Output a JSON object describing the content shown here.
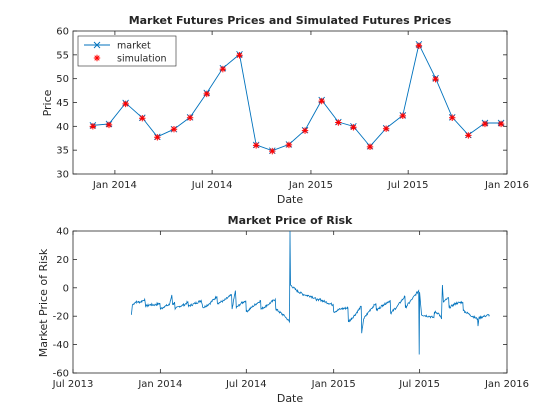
{
  "figure": {
    "colors": {
      "market_line": "#0072BD",
      "simulation_marker": "#FF0000",
      "axes": "#262626",
      "background": "#FFFFFF"
    }
  },
  "chart_data": [
    {
      "type": "line",
      "title": "Market Futures Prices and Simulated Futures Prices",
      "xlabel": "Date",
      "ylabel": "Price",
      "xlim": [
        "2013-10-15",
        "2016-01-01"
      ],
      "ylim": [
        30,
        60
      ],
      "x_ticks": [
        "2014-01-01",
        "2014-07-01",
        "2015-01-01",
        "2015-07-01",
        "2016-01-01"
      ],
      "x_tick_labels": [
        "Jan 2014",
        "Jul 2014",
        "Jan 2015",
        "Jul 2015",
        "Jan 2016"
      ],
      "y_ticks": [
        30,
        35,
        40,
        45,
        50,
        55,
        60
      ],
      "grid": false,
      "legend": {
        "position": "top-left"
      },
      "dates": [
        "2013-11-21",
        "2013-12-21",
        "2014-01-21",
        "2014-02-21",
        "2014-03-21",
        "2014-04-21",
        "2014-05-21",
        "2014-06-21",
        "2014-07-21",
        "2014-08-21",
        "2014-09-21",
        "2014-10-21",
        "2014-11-21",
        "2014-12-21",
        "2015-01-21",
        "2015-02-21",
        "2015-03-21",
        "2015-04-21",
        "2015-05-21",
        "2015-06-21",
        "2015-07-21",
        "2015-08-21",
        "2015-09-21",
        "2015-10-21",
        "2015-11-21",
        "2015-12-21"
      ],
      "series": [
        {
          "name": "market",
          "style": "line-x",
          "values": [
            40.2,
            40.5,
            44.9,
            41.8,
            37.8,
            39.4,
            41.9,
            47.0,
            52.2,
            55.1,
            36.1,
            34.9,
            36.2,
            39.2,
            45.5,
            40.9,
            40.0,
            35.8,
            39.6,
            42.3,
            57.2,
            50.1,
            41.9,
            38.2,
            40.7,
            40.7
          ]
        },
        {
          "name": "simulation",
          "style": "marker-star",
          "values": [
            40.0,
            40.3,
            44.7,
            41.7,
            37.7,
            39.4,
            41.8,
            46.8,
            52.0,
            54.9,
            36.0,
            34.8,
            36.1,
            39.1,
            45.3,
            40.8,
            39.8,
            35.7,
            39.5,
            42.2,
            56.9,
            49.9,
            41.8,
            38.1,
            40.5,
            40.5
          ]
        }
      ]
    },
    {
      "type": "line",
      "title": "Market Price of Risk",
      "xlabel": "Date",
      "ylabel": "Market Price of Risk",
      "xlim": [
        "2013-07-01",
        "2016-01-01"
      ],
      "ylim": [
        -60,
        40
      ],
      "x_ticks": [
        "2013-07-01",
        "2014-01-01",
        "2014-07-01",
        "2015-01-01",
        "2015-07-01",
        "2016-01-01"
      ],
      "x_tick_labels": [
        "Jul 2013",
        "Jan 2014",
        "Jul 2014",
        "Jan 2015",
        "Jul 2015",
        "Jan 2016"
      ],
      "y_ticks": [
        -60,
        -40,
        -20,
        0,
        20,
        40
      ],
      "grid": false,
      "series": [
        {
          "points": [
            [
              "2013-11-01",
              -19
            ],
            [
              "2013-11-03",
              -12
            ],
            [
              "2013-11-10",
              -10
            ],
            [
              "2013-11-20",
              -10
            ],
            [
              "2013-11-25",
              -9
            ],
            [
              "2013-11-29",
              -8
            ],
            [
              "2013-12-01",
              -13
            ],
            [
              "2013-12-10",
              -12
            ],
            [
              "2013-12-20",
              -12
            ],
            [
              "2013-12-31",
              -11
            ],
            [
              "2014-01-01",
              -15
            ],
            [
              "2014-01-10",
              -13
            ],
            [
              "2014-01-20",
              -12
            ],
            [
              "2014-01-25",
              -5
            ],
            [
              "2014-01-27",
              -12
            ],
            [
              "2014-01-31",
              -10
            ],
            [
              "2014-02-01",
              -15
            ],
            [
              "2014-02-10",
              -13
            ],
            [
              "2014-02-20",
              -12
            ],
            [
              "2014-02-28",
              -10
            ],
            [
              "2014-03-01",
              -13
            ],
            [
              "2014-03-15",
              -11
            ],
            [
              "2014-03-28",
              -9
            ],
            [
              "2014-04-01",
              -14
            ],
            [
              "2014-04-15",
              -11
            ],
            [
              "2014-04-30",
              -6
            ],
            [
              "2014-05-01",
              -11
            ],
            [
              "2014-05-15",
              -9
            ],
            [
              "2014-05-31",
              -5
            ],
            [
              "2014-06-01",
              -15
            ],
            [
              "2014-06-08",
              -2
            ],
            [
              "2014-06-10",
              -14
            ],
            [
              "2014-06-20",
              -11
            ],
            [
              "2014-06-30",
              -9
            ],
            [
              "2014-07-01",
              -17
            ],
            [
              "2014-07-15",
              -13
            ],
            [
              "2014-07-31",
              -9
            ],
            [
              "2014-08-01",
              -15
            ],
            [
              "2014-08-15",
              -12
            ],
            [
              "2014-08-31",
              -8
            ],
            [
              "2014-09-01",
              -15
            ],
            [
              "2014-09-20",
              -20
            ],
            [
              "2014-09-30",
              -24
            ],
            [
              "2014-10-01",
              40
            ],
            [
              "2014-10-02",
              2
            ],
            [
              "2014-10-15",
              -2
            ],
            [
              "2014-10-31",
              -5
            ],
            [
              "2014-11-01",
              -5
            ],
            [
              "2014-11-15",
              -6
            ],
            [
              "2014-11-30",
              -9
            ],
            [
              "2014-12-01",
              -8
            ],
            [
              "2014-12-15",
              -10
            ],
            [
              "2014-12-31",
              -12
            ],
            [
              "2015-01-01",
              -17
            ],
            [
              "2015-01-15",
              -15
            ],
            [
              "2015-01-31",
              -14
            ],
            [
              "2015-02-01",
              -24
            ],
            [
              "2015-02-15",
              -19
            ],
            [
              "2015-02-28",
              -13
            ],
            [
              "2015-03-01",
              -32
            ],
            [
              "2015-03-05",
              -22
            ],
            [
              "2015-03-20",
              -15
            ],
            [
              "2015-03-31",
              -11
            ],
            [
              "2015-04-01",
              -16
            ],
            [
              "2015-04-15",
              -12
            ],
            [
              "2015-04-30",
              -9
            ],
            [
              "2015-05-01",
              -18
            ],
            [
              "2015-05-15",
              -13
            ],
            [
              "2015-05-31",
              -6
            ],
            [
              "2015-06-01",
              -14
            ],
            [
              "2015-06-15",
              -8
            ],
            [
              "2015-06-29",
              -2
            ],
            [
              "2015-06-30",
              -47
            ],
            [
              "2015-07-01",
              -3
            ],
            [
              "2015-07-05",
              -19
            ],
            [
              "2015-07-20",
              -20
            ],
            [
              "2015-07-31",
              -21
            ],
            [
              "2015-08-01",
              -17
            ],
            [
              "2015-08-10",
              -18
            ],
            [
              "2015-08-16",
              -22
            ],
            [
              "2015-08-18",
              2
            ],
            [
              "2015-08-20",
              -10
            ],
            [
              "2015-08-31",
              -7
            ],
            [
              "2015-09-01",
              -14
            ],
            [
              "2015-09-15",
              -11
            ],
            [
              "2015-09-30",
              -10
            ],
            [
              "2015-10-01",
              -16
            ],
            [
              "2015-10-15",
              -19
            ],
            [
              "2015-10-31",
              -22
            ],
            [
              "2015-11-01",
              -27
            ],
            [
              "2015-11-03",
              -21
            ],
            [
              "2015-11-15",
              -20
            ],
            [
              "2015-11-25",
              -19
            ]
          ]
        }
      ]
    }
  ]
}
